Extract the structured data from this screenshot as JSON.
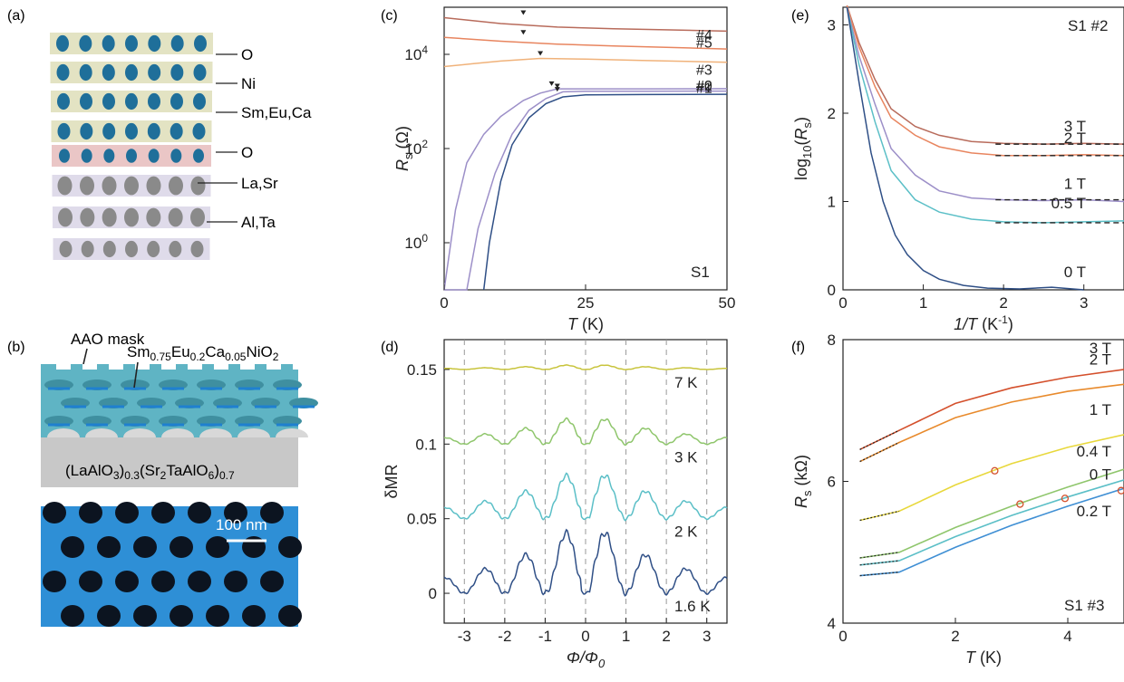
{
  "panel_labels": {
    "a": "(a)",
    "b": "(b)",
    "c": "(c)",
    "d": "(d)",
    "e": "(e)",
    "f": "(f)"
  },
  "panel_a": {
    "labels": [
      "O",
      "Ni",
      "Sm,Eu,Ca",
      "O",
      "La,Sr",
      "Al,Ta"
    ]
  },
  "panel_b": {
    "mask_label": "AAO mask",
    "film_label_main": "Sm",
    "film_sub1": "0.75",
    "film_mid1": "Eu",
    "film_sub2": "0.2",
    "film_mid2": "Ca",
    "film_sub3": "0.05",
    "film_mid3": "NiO",
    "film_sub4": "2",
    "substrate_p1": "(LaAlO",
    "substrate_s1": "3",
    "substrate_p2": ")",
    "substrate_s2": "0.3",
    "substrate_p3": "(Sr",
    "substrate_s3": "2",
    "substrate_p4": "TaAlO",
    "substrate_s4": "6",
    "substrate_p5": ")",
    "substrate_s5": "0.7",
    "scale_label": "100 nm"
  },
  "colors": {
    "navy": "#2f4f86",
    "lavender": "#9c8fc8",
    "peach": "#f0b27a",
    "salmon": "#e8855f",
    "brown": "#b86b5b",
    "teal": "#5bbfc7",
    "olive": "#c8c43c",
    "green": "#8fc66c",
    "orange": "#e88a2c",
    "yellow": "#e8d83c",
    "red": "#d4502c",
    "blue": "#3f8fd4",
    "mask": "#5fb4c4"
  },
  "chart_data": [
    {
      "panel": "c",
      "type": "line",
      "xlabel": "T (K)",
      "xlabel_main": "T",
      "xlabel_unit": " (K)",
      "ylabel_main": "R",
      "ylabel_sub": "s",
      "ylabel_unit": " (Ω)",
      "yscale": "log",
      "xlim": [
        0,
        50
      ],
      "ylim": [
        0.1,
        100000
      ],
      "xticks": [
        "0",
        "25",
        "50"
      ],
      "yticks": [
        {
          "base": "10",
          "exp": "0",
          "value": 1
        },
        {
          "base": "10",
          "exp": "2",
          "value": 100
        },
        {
          "base": "10",
          "exp": "4",
          "value": 10000
        }
      ],
      "corner_label": "S1",
      "series": [
        {
          "name": "#5",
          "color": "brown",
          "x": [
            0,
            10,
            20,
            30,
            40,
            50
          ],
          "y": [
            60000,
            45000,
            38000,
            35000,
            33000,
            31000
          ],
          "min_T": 14
        },
        {
          "name": "#4",
          "color": "salmon",
          "x": [
            0,
            10,
            20,
            30,
            40,
            50
          ],
          "y": [
            23000,
            19000,
            16500,
            15000,
            14000,
            13000
          ],
          "min_T": 14
        },
        {
          "name": "#3",
          "color": "peach",
          "x": [
            0,
            5,
            10,
            17,
            25,
            35,
            50
          ],
          "y": [
            5500,
            6300,
            7200,
            8200,
            7900,
            7400,
            6800
          ],
          "min_T": 17
        },
        {
          "name": "#2",
          "color": "lavender",
          "x": [
            0,
            2,
            4,
            7,
            10,
            14,
            17,
            20,
            25,
            35,
            50
          ],
          "y": [
            0.1,
            5,
            50,
            200,
            480,
            1050,
            1500,
            1850,
            1850,
            1850,
            1870
          ],
          "min_T": 19
        },
        {
          "name": "#1",
          "color": "lavender",
          "x": [
            0,
            4,
            6,
            9,
            12,
            15,
            18,
            21,
            25,
            35,
            50
          ],
          "y": [
            0.1,
            0.1,
            2,
            30,
            200,
            650,
            1150,
            1600,
            1650,
            1650,
            1660
          ],
          "min_T": 20
        },
        {
          "name": "#0",
          "color": "navy",
          "x": [
            7,
            8,
            10,
            12,
            15,
            18,
            21,
            25,
            35,
            50
          ],
          "y": [
            0.1,
            1,
            20,
            120,
            450,
            900,
            1250,
            1380,
            1400,
            1420
          ],
          "min_T": 20
        }
      ]
    },
    {
      "panel": "d",
      "type": "line",
      "xlabel_main": "Φ/Φ",
      "xlabel_sub": "0",
      "ylabel": "δMR",
      "xlim": [
        -3.5,
        3.5
      ],
      "ylim": [
        -0.02,
        0.17
      ],
      "xticks": [
        "-3",
        "-2",
        "-1",
        "0",
        "1",
        "2",
        "3"
      ],
      "yticks": [
        "0",
        "0.05",
        "0.1",
        "0.15"
      ],
      "series": [
        {
          "name": "7 K",
          "color": "olive",
          "offset": 0.15,
          "amp": 0.004
        },
        {
          "name": "3 K",
          "color": "green",
          "offset": 0.1,
          "amp": 0.023
        },
        {
          "name": "2 K",
          "color": "teal",
          "offset": 0.05,
          "amp": 0.04
        },
        {
          "name": "1.6 K",
          "color": "navy",
          "offset": 0.0,
          "amp": 0.056
        }
      ]
    },
    {
      "panel": "e",
      "type": "line",
      "xlabel_main": "1/T",
      "xlabel_unit": " (K",
      "xlabel_exp": "-1",
      "xlabel_end": ")",
      "ylabel_main": "log",
      "ylabel_sub": "10",
      "ylabel_mid": "(R",
      "ylabel_sub2": "s",
      "ylabel_end": ")",
      "xlim": [
        0,
        3.5
      ],
      "ylim": [
        0,
        3.2
      ],
      "xticks": [
        "0",
        "1",
        "2",
        "3"
      ],
      "yticks": [
        "0",
        "1",
        "2",
        "3"
      ],
      "corner_label": "S1 #2",
      "series": [
        {
          "name": "3 T",
          "color": "brown",
          "x": [
            0.05,
            0.2,
            0.4,
            0.6,
            0.9,
            1.2,
            1.6,
            2.0,
            2.5,
            3.0,
            3.5
          ],
          "y": [
            3.22,
            2.8,
            2.38,
            2.05,
            1.85,
            1.75,
            1.68,
            1.66,
            1.65,
            1.66,
            1.65
          ]
        },
        {
          "name": "2 T",
          "color": "salmon",
          "x": [
            0.05,
            0.2,
            0.4,
            0.6,
            0.9,
            1.2,
            1.6,
            2.0,
            2.5,
            3.0,
            3.5
          ],
          "y": [
            3.22,
            2.75,
            2.3,
            1.95,
            1.75,
            1.62,
            1.55,
            1.52,
            1.52,
            1.53,
            1.52
          ]
        },
        {
          "name": "1 T",
          "color": "lavender",
          "x": [
            0.05,
            0.2,
            0.4,
            0.6,
            0.9,
            1.2,
            1.6,
            2.0,
            2.5,
            3.0,
            3.5
          ],
          "y": [
            3.2,
            2.65,
            2.1,
            1.6,
            1.3,
            1.12,
            1.04,
            1.02,
            1.01,
            1.02,
            1.0
          ]
        },
        {
          "name": "0.5 T",
          "color": "teal",
          "x": [
            0.05,
            0.2,
            0.4,
            0.6,
            0.9,
            1.2,
            1.6,
            2.0,
            2.5,
            3.0,
            3.5
          ],
          "y": [
            3.2,
            2.55,
            1.9,
            1.35,
            1.02,
            0.88,
            0.8,
            0.77,
            0.76,
            0.77,
            0.78
          ]
        },
        {
          "name": "0 T",
          "color": "navy",
          "x": [
            0.05,
            0.2,
            0.35,
            0.5,
            0.65,
            0.8,
            1.0,
            1.2,
            1.5,
            1.8,
            2.2,
            2.6,
            3.0
          ],
          "y": [
            3.2,
            2.35,
            1.55,
            1.0,
            0.62,
            0.4,
            0.22,
            0.12,
            0.05,
            0.02,
            0.01,
            0.03,
            0.0
          ]
        }
      ],
      "fit_levels": [
        1.65,
        1.52,
        1.02,
        0.76
      ]
    },
    {
      "panel": "f",
      "type": "line",
      "xlabel_main": "T",
      "xlabel_unit": " (K)",
      "ylabel_main": "R",
      "ylabel_sub": "s",
      "ylabel_unit": " (kΩ)",
      "xlim": [
        0,
        5
      ],
      "ylim": [
        4,
        8
      ],
      "xticks": [
        "0",
        "2",
        "4"
      ],
      "yticks": [
        "4",
        "6",
        "8"
      ],
      "corner_label": "S1 #3",
      "series": [
        {
          "name": "3 T",
          "color": "red",
          "x": [
            0.3,
            1,
            2,
            3,
            4,
            5
          ],
          "y": [
            6.45,
            6.72,
            7.1,
            7.32,
            7.47,
            7.58
          ]
        },
        {
          "name": "2 T",
          "color": "orange",
          "x": [
            0.3,
            1,
            2,
            3,
            4,
            5
          ],
          "y": [
            6.28,
            6.55,
            6.9,
            7.12,
            7.27,
            7.37
          ]
        },
        {
          "name": "1 T",
          "color": "yellow",
          "x": [
            0.3,
            1,
            2,
            3,
            4,
            5
          ],
          "y": [
            5.45,
            5.58,
            5.95,
            6.25,
            6.48,
            6.66
          ]
        },
        {
          "name": "0.4 T",
          "color": "green",
          "x": [
            0.3,
            1,
            2,
            3,
            4,
            5
          ],
          "y": [
            4.92,
            5.0,
            5.35,
            5.65,
            5.92,
            6.17
          ]
        },
        {
          "name": "0.2 T",
          "color": "teal",
          "x": [
            0.3,
            1,
            2,
            3,
            4,
            5
          ],
          "y": [
            4.82,
            4.88,
            5.22,
            5.52,
            5.78,
            6.02
          ]
        },
        {
          "name": "0 T",
          "color": "blue",
          "x": [
            0.3,
            1,
            2,
            3,
            4,
            5
          ],
          "y": [
            4.67,
            4.72,
            5.07,
            5.38,
            5.65,
            5.9
          ]
        }
      ],
      "marked_points": [
        {
          "x": 2.7,
          "y": 6.15
        },
        {
          "x": 3.15,
          "y": 5.68
        },
        {
          "x": 3.95,
          "y": 5.76
        },
        {
          "x": 4.95,
          "y": 5.87
        }
      ]
    }
  ]
}
